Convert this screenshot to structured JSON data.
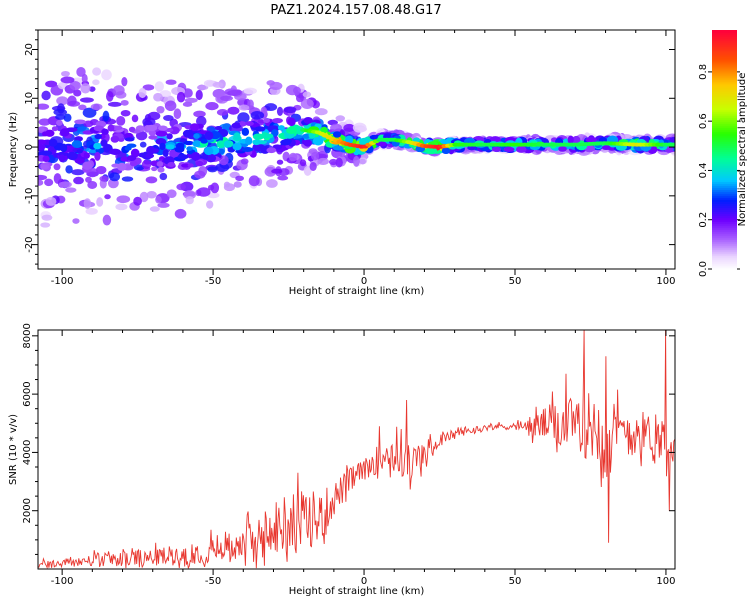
{
  "figure": {
    "title": "PAZ1.2024.157.08.48.G17"
  },
  "chart_data": [
    {
      "type": "heatmap",
      "title": "PAZ1.2024.157.08.48.G17",
      "xlabel": "Height of straight line (km)",
      "ylabel": "Frequency (Hz)",
      "xlim": [
        -108,
        103
      ],
      "ylim": [
        -25,
        24
      ],
      "x_ticks": [
        -100,
        -50,
        0,
        50,
        100
      ],
      "y_ticks": [
        -20,
        -10,
        0,
        10,
        20
      ],
      "x_tick_labels": [
        "-100",
        "-50",
        "0",
        "50",
        "100"
      ],
      "y_tick_labels": [
        "-20",
        "-10",
        "0",
        "10",
        "20"
      ],
      "colorbar": {
        "label": "Normalized spectral amplitude",
        "range": [
          0,
          0.97
        ],
        "ticks": [
          0.0,
          0.2,
          0.4,
          0.6,
          0.8
        ],
        "tick_labels": [
          "0.0",
          "0.2",
          "0.4",
          "0.6",
          "0.8"
        ],
        "colormap": "gist_rainbow (white at low end)"
      },
      "ridge": {
        "x": [
          -108,
          -100,
          -90,
          -80,
          -70,
          -60,
          -50,
          -40,
          -30,
          -20,
          -15,
          -10,
          -5,
          0,
          5,
          10,
          15,
          20,
          25,
          30,
          40,
          50,
          60,
          70,
          80,
          90,
          100,
          103
        ],
        "freq": [
          0,
          0.5,
          0.5,
          0,
          -0.5,
          0,
          1,
          1.5,
          2.5,
          3.5,
          3,
          1.5,
          0.5,
          0,
          1.5,
          1.5,
          1,
          0.2,
          0,
          0.5,
          0.5,
          0.5,
          0.5,
          0.5,
          0.8,
          0.5,
          0.5,
          0.5
        ],
        "amplitude": [
          0.3,
          0.3,
          0.35,
          0.3,
          0.3,
          0.4,
          0.45,
          0.45,
          0.45,
          0.5,
          0.65,
          0.75,
          0.85,
          0.95,
          0.5,
          0.5,
          0.65,
          0.85,
          0.95,
          0.55,
          0.5,
          0.55,
          0.5,
          0.5,
          0.5,
          0.7,
          0.5,
          0.5
        ],
        "halfwidth_hz": [
          9,
          9,
          9,
          8,
          8,
          8,
          7,
          6,
          6,
          5,
          4,
          3,
          2.5,
          2,
          2,
          2,
          2,
          1.5,
          1.5,
          1.5,
          1.5,
          1.5,
          1.8,
          2,
          2.2,
          2,
          2,
          2
        ]
      }
    },
    {
      "type": "line",
      "xlabel": "Height of straight line (km)",
      "ylabel": "SNR (10 * v/v)",
      "xlim": [
        -108,
        103
      ],
      "ylim": [
        0,
        8200
      ],
      "x_ticks": [
        -100,
        -50,
        0,
        50,
        100
      ],
      "y_ticks": [
        2000,
        4000,
        6000,
        8000
      ],
      "x_tick_labels": [
        "-100",
        "-50",
        "0",
        "50",
        "100"
      ],
      "y_tick_labels": [
        "2000",
        "4000",
        "6000",
        "8000"
      ],
      "color": "#e8372f",
      "series": [
        {
          "x": [
            -108,
            -100,
            -90,
            -80,
            -70,
            -60,
            -50,
            -40,
            -30,
            -25,
            -20,
            -15,
            -10,
            -5,
            0,
            5,
            10,
            15,
            20,
            25,
            30,
            35,
            40,
            45,
            50,
            55,
            60,
            65,
            70,
            75,
            80,
            85,
            90,
            95,
            100,
            103
          ],
          "mean": [
            150,
            200,
            300,
            350,
            400,
            500,
            700,
            900,
            1200,
            1500,
            1600,
            1700,
            2400,
            3000,
            3400,
            3800,
            4000,
            3600,
            3900,
            4400,
            4650,
            4750,
            4850,
            4900,
            4900,
            4850,
            5000,
            4950,
            4800,
            5000,
            4700,
            4600,
            4750,
            4600,
            4450,
            4300
          ],
          "noise_amplitude": [
            120,
            150,
            220,
            250,
            300,
            380,
            450,
            650,
            800,
            900,
            900,
            900,
            600,
            450,
            350,
            500,
            650,
            700,
            450,
            200,
            150,
            120,
            100,
            100,
            120,
            350,
            600,
            800,
            1000,
            1200,
            1300,
            1000,
            800,
            700,
            800,
            850
          ],
          "peaks": [
            {
              "x": -22,
              "y": 3300
            },
            {
              "x": 5,
              "y": 4900
            },
            {
              "x": 14,
              "y": 5800
            },
            {
              "x": 67,
              "y": 6700
            },
            {
              "x": 73,
              "y": 8200
            },
            {
              "x": 80,
              "y": 7300
            },
            {
              "x": 81,
              "y": 900
            },
            {
              "x": 100,
              "y": 8200
            },
            {
              "x": 101,
              "y": 2000
            }
          ]
        }
      ]
    }
  ]
}
